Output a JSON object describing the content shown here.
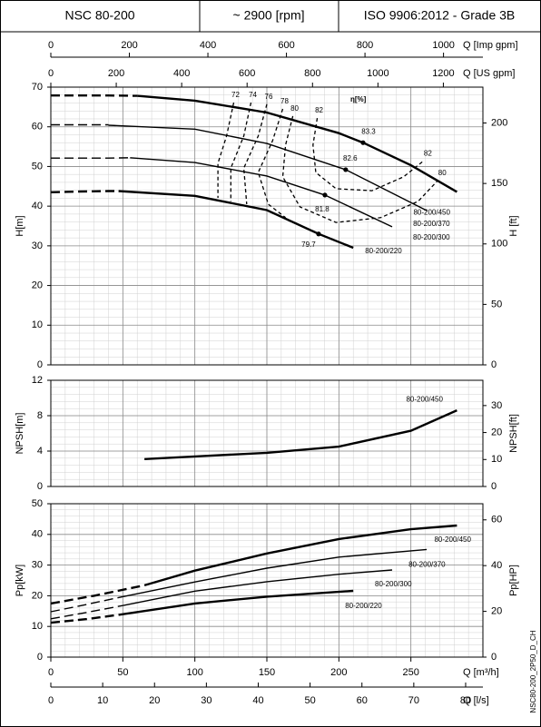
{
  "header": {
    "model": "NSC 80-200",
    "speed": "~ 2900 [rpm]",
    "standard": "ISO 9906:2012 - Grade 3B"
  },
  "footer_code": "NSC80-200_2P50_D_CH",
  "x_axes": [
    {
      "label": "Q [Imp gpm]",
      "xlim": [
        0,
        1100.3
      ],
      "xticks": [
        0,
        200,
        400,
        600,
        800,
        1000
      ]
    },
    {
      "label": "Q [US gpm]",
      "xlim": [
        0,
        1320.9
      ],
      "xticks": [
        0,
        200,
        400,
        600,
        800,
        1000,
        1200
      ]
    },
    {
      "label": "Q [m³/h]",
      "xlim": [
        0,
        300
      ],
      "xticks": [
        0,
        50,
        100,
        150,
        200,
        250
      ]
    },
    {
      "label": "Q [l/s]",
      "xlim": [
        0,
        83.33
      ],
      "xticks": [
        0,
        10,
        20,
        30,
        40,
        50,
        60,
        70,
        80
      ]
    }
  ],
  "chart_data": [
    {
      "type": "line",
      "ylabel": "H[m]",
      "y2label": "H [ft]",
      "grid": true,
      "ylim": [
        0,
        70
      ],
      "yticks": [
        0,
        10,
        20,
        30,
        40,
        50,
        60,
        70
      ],
      "y2lim": [
        0,
        229.66
      ],
      "y2ticks": [
        0,
        50,
        100,
        150,
        200
      ],
      "series": [
        {
          "name": "80-200/450",
          "color": "#000000",
          "dashed_x": [
            0,
            20,
            40,
            60
          ],
          "dashed_values": [
            67.9,
            67.9,
            67.9,
            67.8
          ],
          "x": [
            60,
            100,
            150,
            200,
            216.8,
            250,
            282
          ],
          "values": [
            67.8,
            66.6,
            63.6,
            58.4,
            56.0,
            50.3,
            43.6
          ]
        },
        {
          "name": "80-200/370",
          "color": "#000000",
          "dashed_x": [
            0,
            20,
            40
          ],
          "dashed_values": [
            60.5,
            60.5,
            60.5
          ],
          "x": [
            40,
            100,
            150,
            204.7,
            261
          ],
          "values": [
            60.4,
            59.4,
            55.8,
            49.2,
            38.9
          ]
        },
        {
          "name": "80-200/300",
          "color": "#000000",
          "dashed_x": [
            0,
            20,
            40,
            55
          ],
          "dashed_values": [
            52.1,
            52.1,
            52.1,
            52.2
          ],
          "x": [
            55,
            100,
            150,
            190.3,
            237
          ],
          "values": [
            52.2,
            51.0,
            47.6,
            42.8,
            34.8
          ]
        },
        {
          "name": "80-200/220",
          "color": "#000000",
          "dashed_x": [
            0,
            20,
            40,
            47
          ],
          "dashed_values": [
            43.5,
            43.7,
            43.8,
            43.8
          ],
          "x": [
            47,
            100,
            150,
            185.9,
            210
          ],
          "values": [
            43.8,
            42.6,
            39.0,
            33.0,
            29.5
          ]
        }
      ],
      "efficiency_title": "η[%]",
      "efficiency_contours": [
        {
          "efficiency": 72,
          "x": [
            127,
            122,
            116,
            116
          ],
          "values": [
            66.1,
            57.7,
            50.8,
            42.1
          ]
        },
        {
          "efficiency": 74,
          "x": [
            139,
            134,
            125,
            125
          ],
          "values": [
            66.1,
            57.7,
            49.6,
            41.2
          ]
        },
        {
          "efficiency": 76,
          "x": [
            150,
            144,
            134,
            136
          ],
          "values": [
            65.7,
            57.7,
            49.6,
            40.5
          ]
        },
        {
          "efficiency": 78,
          "x": [
            161,
            154,
            144,
            151,
            163
          ],
          "values": [
            64.5,
            56.5,
            48.5,
            40.5,
            37.1
          ]
        },
        {
          "efficiency": 80,
          "x": [
            168,
            163,
            161,
            173,
            198,
            229,
            255,
            268
          ],
          "values": [
            62.7,
            55.4,
            47.4,
            39.8,
            35.9,
            37.1,
            41.2,
            46.2
          ]
        },
        {
          "efficiency": 82,
          "x": [
            185,
            182,
            184,
            198,
            223,
            245,
            258
          ],
          "values": [
            62.2,
            55.4,
            48.5,
            44.4,
            43.9,
            47.4,
            51.2
          ]
        }
      ],
      "efficiency_points": [
        {
          "efficiency": 83.3,
          "x": 216.8,
          "y": 56.0
        },
        {
          "efficiency": 82.6,
          "x": 204.7,
          "y": 49.2
        },
        {
          "efficiency": 81.8,
          "x": 190.3,
          "y": 42.8
        },
        {
          "efficiency": 79.7,
          "x": 185.9,
          "y": 33.0
        }
      ]
    },
    {
      "type": "line",
      "ylabel": "NPSH[m]",
      "y2label": "NPSH[ft]",
      "grid": true,
      "ylim": [
        0,
        12
      ],
      "yticks": [
        0,
        4,
        8,
        12
      ],
      "y2lim": [
        0,
        39.37
      ],
      "y2ticks": [
        0,
        10,
        20,
        30
      ],
      "series": [
        {
          "name": "80-200/450",
          "color": "#000000",
          "x": [
            65,
            100,
            150,
            200,
            250,
            282
          ],
          "values": [
            3.1,
            3.4,
            3.8,
            4.5,
            6.3,
            8.6
          ]
        }
      ]
    },
    {
      "type": "line",
      "ylabel": "Pp[kW]",
      "y2label": "Pp[HP]",
      "grid": true,
      "ylim": [
        0,
        50
      ],
      "yticks": [
        0,
        10,
        20,
        30,
        40,
        50
      ],
      "y2lim": [
        0,
        67.05
      ],
      "y2ticks": [
        0,
        20,
        40,
        60
      ],
      "series": [
        {
          "name": "80-200/450",
          "color": "#000000",
          "dashed_x": [
            0,
            30,
            65
          ],
          "dashed_values": [
            17.5,
            20.0,
            23.4
          ],
          "x": [
            65,
            100,
            150,
            200,
            250,
            282
          ],
          "values": [
            23.4,
            28.2,
            33.8,
            38.5,
            41.7,
            42.9
          ]
        },
        {
          "name": "80-200/370",
          "color": "#000000",
          "dashed_x": [
            0,
            25,
            50
          ],
          "dashed_values": [
            14.8,
            17.2,
            19.7
          ],
          "x": [
            50,
            100,
            150,
            200,
            261
          ],
          "values": [
            19.7,
            24.5,
            29.0,
            32.6,
            35.1
          ]
        },
        {
          "name": "80-200/300",
          "color": "#000000",
          "dashed_x": [
            0,
            25,
            50
          ],
          "dashed_values": [
            12.5,
            14.6,
            16.8
          ],
          "x": [
            50,
            100,
            150,
            200,
            237
          ],
          "values": [
            16.8,
            21.5,
            24.6,
            27.0,
            28.4
          ]
        },
        {
          "name": "80-200/220",
          "color": "#000000",
          "dashed_x": [
            0,
            25,
            47
          ],
          "dashed_values": [
            11.2,
            12.4,
            13.8
          ],
          "x": [
            47,
            100,
            150,
            210
          ],
          "values": [
            13.8,
            17.5,
            19.7,
            21.6
          ]
        }
      ]
    }
  ]
}
